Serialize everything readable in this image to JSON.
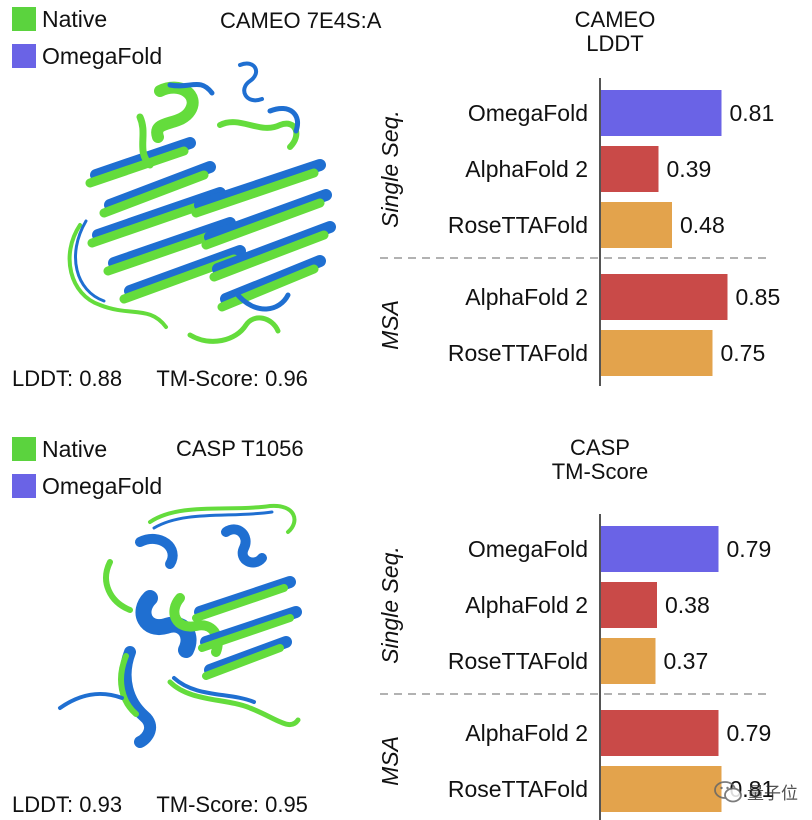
{
  "colors": {
    "native": "#5bd33e",
    "omegafold": "#6a63e6",
    "alphafold": "#c94a48",
    "rosettafold": "#e3a34c",
    "protein_blue": "#1f6fd1",
    "protein_green": "#64dc3c"
  },
  "panels": [
    {
      "legend": [
        {
          "label": "Native",
          "color": "#5bd33e"
        },
        {
          "label": "OmegaFold",
          "color": "#6a63e6"
        }
      ],
      "structure_title": "CAMEO 7E4S:A",
      "metrics": {
        "lddt": "LDDT: 0.88",
        "tm": "TM-Score: 0.96"
      },
      "chart_title": [
        "CAMEO",
        "LDDT"
      ]
    },
    {
      "legend": [
        {
          "label": "Native",
          "color": "#5bd33e"
        },
        {
          "label": "OmegaFold",
          "color": "#6a63e6"
        }
      ],
      "structure_title": "CASP T1056",
      "metrics": {
        "lddt": "LDDT: 0.93",
        "tm": "TM-Score: 0.95"
      },
      "chart_title": [
        "CASP",
        "TM-Score"
      ]
    }
  ],
  "watermark": {
    "text": "量子位"
  },
  "chart_data": [
    {
      "type": "bar",
      "orientation": "horizontal",
      "title": "CAMEO LDDT",
      "groups": [
        {
          "name": "Single Seq.",
          "categories": [
            "OmegaFold",
            "AlphaFold 2",
            "RoseTTAFold"
          ],
          "values": [
            0.81,
            0.39,
            0.48
          ],
          "colors": [
            "#6a63e6",
            "#c94a48",
            "#e3a34c"
          ]
        },
        {
          "name": "MSA",
          "categories": [
            "AlphaFold 2",
            "RoseTTAFold"
          ],
          "values": [
            0.85,
            0.75
          ],
          "colors": [
            "#c94a48",
            "#e3a34c"
          ]
        }
      ],
      "xlim": [
        0,
        1
      ],
      "value_labels": [
        "0.81",
        "0.39",
        "0.48",
        "0.85",
        "0.75"
      ]
    },
    {
      "type": "bar",
      "orientation": "horizontal",
      "title": "CASP TM-Score",
      "groups": [
        {
          "name": "Single Seq.",
          "categories": [
            "OmegaFold",
            "AlphaFold 2",
            "RoseTTAFold"
          ],
          "values": [
            0.79,
            0.38,
            0.37
          ],
          "colors": [
            "#6a63e6",
            "#c94a48",
            "#e3a34c"
          ]
        },
        {
          "name": "MSA",
          "categories": [
            "AlphaFold 2",
            "RoseTTAFold"
          ],
          "values": [
            0.79,
            0.81
          ],
          "colors": [
            "#c94a48",
            "#e3a34c"
          ]
        }
      ],
      "xlim": [
        0,
        1
      ],
      "value_labels": [
        "0.79",
        "0.38",
        "0.37",
        "0.79",
        "0.81"
      ]
    }
  ]
}
